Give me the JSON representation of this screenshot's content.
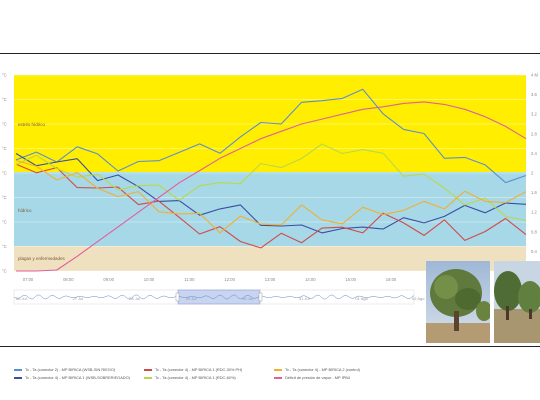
{
  "chart_data": {
    "type": "line",
    "y_left_ticks": [
      "°C",
      "°C",
      "°C",
      "°C",
      "°C",
      "°C",
      "°C",
      "°C",
      "°C"
    ],
    "y_right_ticks": [
      "4 M",
      "3.6",
      "3.2",
      "2.8",
      "2.4",
      "2",
      "1.6",
      "1.2",
      "0.8",
      "0.4",
      "0"
    ],
    "x_ticks": [
      "07:00",
      "08:00",
      "09:00",
      "10:00",
      "11:00",
      "12:00",
      "13:00",
      "14:00",
      "15:00",
      "16:00",
      "17:00",
      "18:00",
      "19:00"
    ],
    "zones": [
      {
        "label": "estrés hídrico",
        "color": "#ffee00"
      },
      {
        "label": "hídrico",
        "color": "#a7d8e8"
      },
      {
        "label": "plagas y enfermedades",
        "color": "#efe0c0"
      }
    ],
    "series": [
      {
        "name": "Tc - Ta (conector 2) - MP BIRICA (WSB-SIN RIEGO)",
        "color": "#5a8fd0",
        "values": [
          0.1,
          0.2,
          0.35,
          0.5,
          0.3,
          -0.1,
          -0.3,
          0.2,
          0.6,
          0.5,
          0.7,
          1.1,
          1.6,
          2.1,
          2.5,
          2.8,
          3.2,
          3.0,
          2.4,
          1.6,
          1.0,
          0.5,
          0.1,
          -0.3,
          -0.6,
          -0.9
        ]
      },
      {
        "name": "Tc - Ta (conector 4) - MP BIRICA 1 (WSB-SOBRERIEGADO)",
        "color": "#3a4fa0",
        "values": [
          0.05,
          0.1,
          0.0,
          -0.1,
          -0.5,
          -0.8,
          -1.2,
          -1.5,
          -2.1,
          -2.3,
          -2.0,
          -2.3,
          -2.6,
          -3.0,
          -3.1,
          -2.9,
          -3.3,
          -3.0,
          -2.8,
          -2.9,
          -2.6,
          -2.4,
          -2.3,
          -2.0,
          -2.0,
          -2.1
        ]
      },
      {
        "name": "Tc - Ta (conector 4) - MP BIRICA 1 (RDC-30% PH)",
        "color": "#d04a4a",
        "values": [
          0.0,
          -0.3,
          -0.6,
          -0.9,
          -1.2,
          -1.4,
          -1.6,
          -2.0,
          -2.6,
          -3.0,
          -3.3,
          -3.5,
          -3.8,
          -3.6,
          -3.4,
          -3.1,
          -3.2,
          -2.9,
          -2.6,
          -2.8,
          -3.1,
          -3.0,
          -3.4,
          -3.1,
          -2.9,
          -3.0
        ]
      },
      {
        "name": "Tc - Ta (conector 4) - MP BIRICA 1 (RDC-60%)",
        "color": "#b8d84a",
        "values": [
          0.2,
          0.0,
          -0.2,
          -0.5,
          -0.9,
          -1.0,
          -1.1,
          -1.3,
          -1.4,
          -1.3,
          -1.0,
          -0.7,
          -0.4,
          -0.1,
          0.3,
          0.5,
          0.7,
          0.5,
          0.2,
          -0.3,
          -0.8,
          -1.2,
          -1.7,
          -2.0,
          -2.3,
          -2.6
        ]
      },
      {
        "name": "Tc - Ta (conector 4) - MP BIRICA 2 (control)",
        "color": "#f0b030",
        "values": [
          -0.1,
          -0.3,
          -0.5,
          -0.8,
          -1.1,
          -1.4,
          -1.7,
          -2.0,
          -2.4,
          -2.6,
          -2.9,
          -2.7,
          -2.9,
          -2.6,
          -2.3,
          -2.5,
          -2.7,
          -2.4,
          -2.1,
          -2.3,
          -2.0,
          -1.8,
          -1.6,
          -1.8,
          -1.6,
          -1.7
        ]
      },
      {
        "name": "Déficit de presión de vapor - MP IPB4",
        "color": "#e0609a",
        "values": [
          0.0,
          0.0,
          0.02,
          0.3,
          0.6,
          0.9,
          1.2,
          1.5,
          1.8,
          2.05,
          2.3,
          2.5,
          2.7,
          2.85,
          3.0,
          3.1,
          3.2,
          3.3,
          3.35,
          3.42,
          3.45,
          3.4,
          3.3,
          3.15,
          2.95,
          2.7
        ]
      }
    ],
    "navigator_labels": [
      "26 Jul",
      "27 Jul",
      "28 Jul",
      "29 Jul",
      "30 Jul",
      "31 Jul",
      "01 Ago",
      "02 Ago"
    ],
    "legend_position": "bottom"
  },
  "legend": [
    {
      "label": "Tc - Ta (conector 2) - MP BIRICA (WSB-SIN RIEGO)",
      "color": "#5a8fd0"
    },
    {
      "label": "Tc - Ta (conector 4) - MP BIRICA 1 (RDC-30% PH)",
      "color": "#d04a4a"
    },
    {
      "label": "Tc - Ta (conector 4) - MP BIRICA 2 (control)",
      "color": "#f0b030"
    },
    {
      "label": "Tc - Ta (conector 4) - MP BIRICA 1 (WSB-SOBRERIEGADO)",
      "color": "#3a4fa0"
    },
    {
      "label": "Tc - Ta (conector 4) - MP BIRICA 1 (RDC-60%)",
      "color": "#b8d84a"
    },
    {
      "label": "Déficit de presión de vapor - MP IPB4",
      "color": "#e0609a"
    }
  ],
  "photos": [
    {
      "subject": "almond-tree"
    },
    {
      "subject": "orchard-rows"
    }
  ]
}
